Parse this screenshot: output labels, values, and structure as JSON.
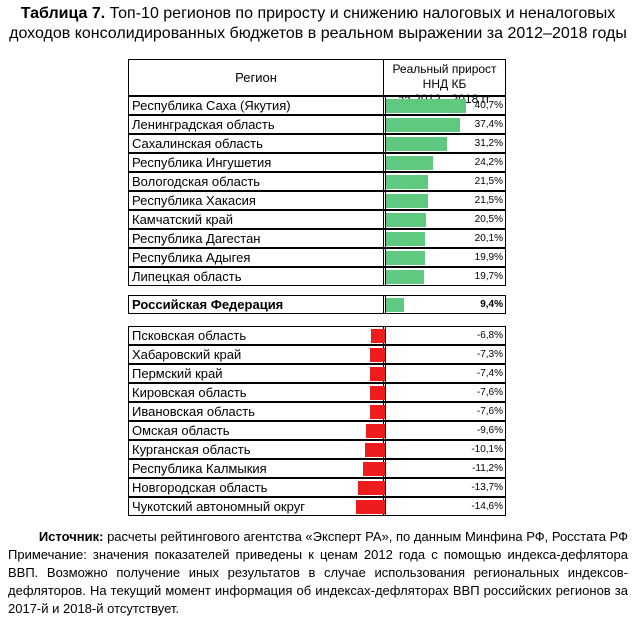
{
  "title_bold": "Таблица 7.",
  "title_text": "Топ-10 регионов по приросту и снижению налоговых и неналоговых доходов консолидированных бюджетов в реальном выражении за 2012–2018 годы",
  "header": {
    "region": "Регион",
    "metric_line1": "Реальный прирост ННД КБ",
    "metric_line2": "за 2012 - 2018 гг"
  },
  "colors": {
    "positive": "#5ec97f",
    "negative": "#ee1c1c"
  },
  "chart_data": {
    "type": "bar",
    "orientation": "horizontal",
    "unit": "%",
    "top": [
      {
        "region": "Республика Саха (Якутия)",
        "value": 40.7,
        "label": "40,7%"
      },
      {
        "region": "Ленинградская область",
        "value": 37.4,
        "label": "37,4%"
      },
      {
        "region": "Сахалинская область",
        "value": 31.2,
        "label": "31,2%"
      },
      {
        "region": "Республика Ингушетия",
        "value": 24.2,
        "label": "24,2%"
      },
      {
        "region": "Вологодская область",
        "value": 21.5,
        "label": "21,5%"
      },
      {
        "region": "Республика Хакасия",
        "value": 21.5,
        "label": "21,5%"
      },
      {
        "region": "Камчатский край",
        "value": 20.5,
        "label": "20,5%"
      },
      {
        "region": "Республика Дагестан",
        "value": 20.1,
        "label": "20,1%"
      },
      {
        "region": "Республика Адыгея",
        "value": 19.9,
        "label": "19,9%"
      },
      {
        "region": "Липецкая область",
        "value": 19.7,
        "label": "19,7%"
      }
    ],
    "russia": {
      "region": "Российская Федерация",
      "value": 9.4,
      "label": "9,4%"
    },
    "bottom": [
      {
        "region": "Псковская область",
        "value": -6.8,
        "label": "-6,8%"
      },
      {
        "region": "Хабаровский край",
        "value": -7.3,
        "label": "-7,3%"
      },
      {
        "region": "Пермский край",
        "value": -7.4,
        "label": "-7,4%"
      },
      {
        "region": "Кировская область",
        "value": -7.6,
        "label": "-7,6%"
      },
      {
        "region": "Ивановская область",
        "value": -7.6,
        "label": "-7,6%"
      },
      {
        "region": "Омская область",
        "value": -9.6,
        "label": "-9,6%"
      },
      {
        "region": "Курганская область",
        "value": -10.1,
        "label": "-10,1%"
      },
      {
        "region": "Республика Калмыкия",
        "value": -11.2,
        "label": "-11,2%"
      },
      {
        "region": "Новгородская область",
        "value": -13.7,
        "label": "-13,7%"
      },
      {
        "region": "Чукотский автономный округ",
        "value": -14.6,
        "label": "-14,6%"
      }
    ]
  },
  "footer": {
    "source_bold": "Источник:",
    "source_text": "расчеты рейтингового агентства «Эксперт РА», по данным Минфина РФ, Росстата РФ",
    "note_text": "Примечание: значения показателей приведены к ценам 2012 года с помощью индекса-дефлятора ВВП. Возможно получение иных результатов в случае использования региональных индексов-дефляторов. На текущий момент информация об индексах-дефляторах ВВП российских регионов за 2017-й и 2018-й отсутствует."
  }
}
